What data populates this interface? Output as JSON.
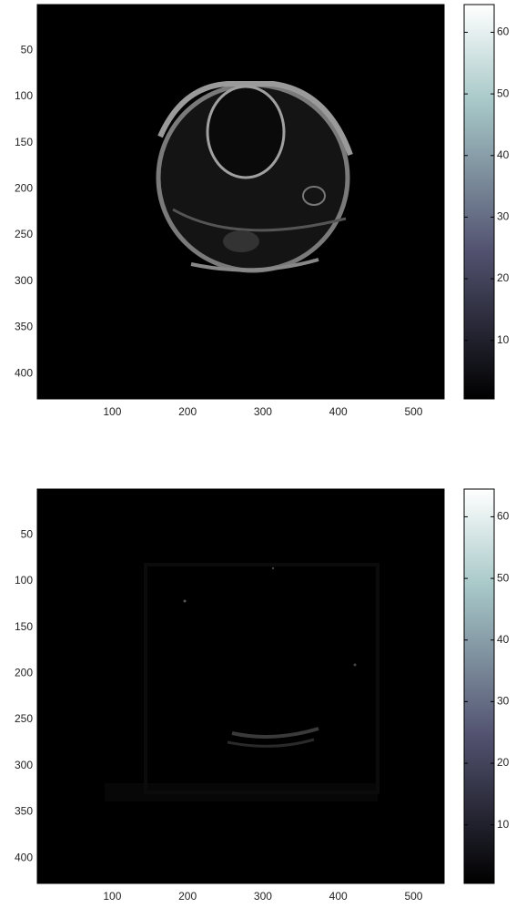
{
  "chart_data": [
    {
      "type": "image",
      "colormap": "bone",
      "y_reversed": true,
      "xlim": [
        0.5,
        540.5
      ],
      "ylim": [
        0.5,
        427.5
      ],
      "xticks": [
        100,
        200,
        300,
        400,
        500
      ],
      "yticks": [
        50,
        100,
        150,
        200,
        250,
        300,
        350,
        400
      ],
      "colorbar": {
        "clim": [
          0.5,
          64.5
        ],
        "ticks": [
          10,
          20,
          30,
          40,
          50,
          60
        ]
      }
    },
    {
      "type": "image",
      "colormap": "bone",
      "y_reversed": true,
      "xlim": [
        0.5,
        540.5
      ],
      "ylim": [
        0.5,
        427.5
      ],
      "xticks": [
        100,
        200,
        300,
        400,
        500
      ],
      "yticks": [
        50,
        100,
        150,
        200,
        250,
        300,
        350,
        400
      ],
      "colorbar": {
        "clim": [
          0.5,
          64.5
        ],
        "ticks": [
          10,
          20,
          30,
          40,
          50,
          60
        ]
      }
    }
  ]
}
